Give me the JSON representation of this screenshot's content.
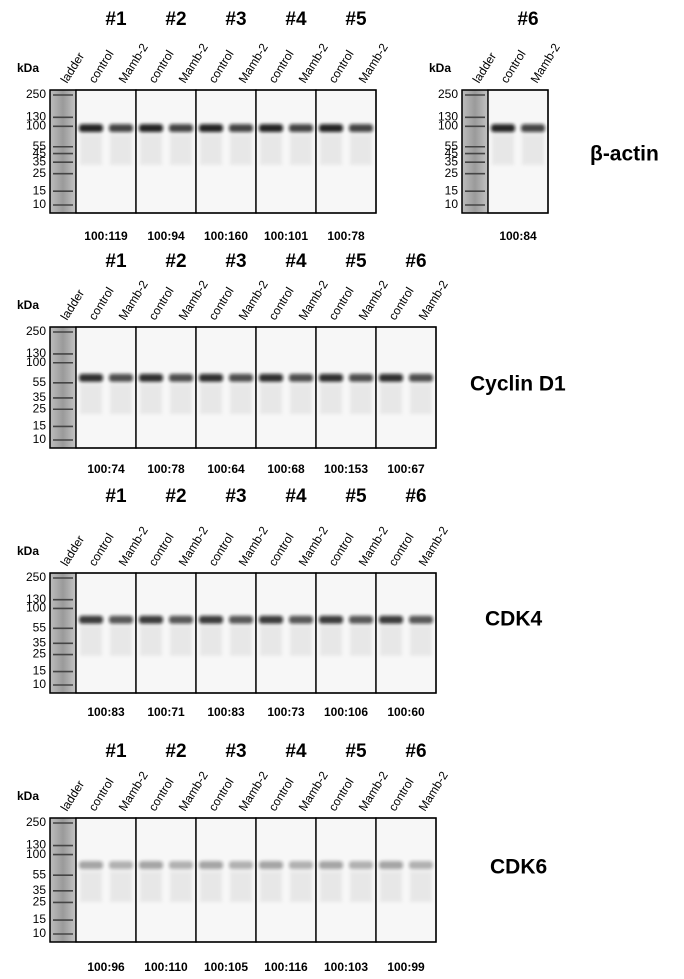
{
  "figure": {
    "rows": [
      {
        "protein": "β-actin",
        "blots": [
          {
            "kda": "kDa",
            "ladder": "ladder",
            "markers": [
              250,
              130,
              100,
              55,
              45,
              35,
              25,
              15,
              10
            ],
            "groups": [
              {
                "label": "#1",
                "lanes": [
                  "control",
                  "Mamb-2"
                ],
                "ratio": "100:119"
              },
              {
                "label": "#2",
                "lanes": [
                  "control",
                  "Mamb-2"
                ],
                "ratio": "100:94"
              },
              {
                "label": "#3",
                "lanes": [
                  "control",
                  "Mamb-2"
                ],
                "ratio": "100:160"
              },
              {
                "label": "#4",
                "lanes": [
                  "control",
                  "Mamb-2"
                ],
                "ratio": "100:101"
              },
              {
                "label": "#5",
                "lanes": [
                  "control",
                  "Mamb-2"
                ],
                "ratio": "100:78"
              }
            ]
          },
          {
            "kda": "kDa",
            "ladder": "ladder",
            "markers": [
              250,
              130,
              100,
              55,
              45,
              35,
              25,
              15,
              10
            ],
            "groups": [
              {
                "label": "#6",
                "lanes": [
                  "control",
                  "Mamb-2"
                ],
                "ratio": "100:84"
              }
            ]
          }
        ]
      },
      {
        "protein": "Cyclin D1",
        "blots": [
          {
            "kda": "kDa",
            "ladder": "ladder",
            "markers": [
              250,
              130,
              100,
              55,
              35,
              25,
              15,
              10
            ],
            "groups": [
              {
                "label": "#1",
                "lanes": [
                  "control",
                  "Mamb-2"
                ],
                "ratio": "100:74"
              },
              {
                "label": "#2",
                "lanes": [
                  "control",
                  "Mamb-2"
                ],
                "ratio": "100:78"
              },
              {
                "label": "#3",
                "lanes": [
                  "control",
                  "Mamb-2"
                ],
                "ratio": "100:64"
              },
              {
                "label": "#4",
                "lanes": [
                  "control",
                  "Mamb-2"
                ],
                "ratio": "100:68"
              },
              {
                "label": "#5",
                "lanes": [
                  "control",
                  "Mamb-2"
                ],
                "ratio": "100:153"
              },
              {
                "label": "#6",
                "lanes": [
                  "control",
                  "Mamb-2"
                ],
                "ratio": "100:67"
              }
            ]
          }
        ]
      },
      {
        "protein": "CDK4",
        "blots": [
          {
            "kda": "kDa",
            "ladder": "ladder",
            "markers": [
              250,
              130,
              100,
              55,
              35,
              25,
              15,
              10
            ],
            "groups": [
              {
                "label": "#1",
                "lanes": [
                  "control",
                  "Mamb-2"
                ],
                "ratio": "100:83"
              },
              {
                "label": "#2",
                "lanes": [
                  "control",
                  "Mamb-2"
                ],
                "ratio": "100:71"
              },
              {
                "label": "#3",
                "lanes": [
                  "control",
                  "Mamb-2"
                ],
                "ratio": "100:83"
              },
              {
                "label": "#4",
                "lanes": [
                  "control",
                  "Mamb-2"
                ],
                "ratio": "100:73"
              },
              {
                "label": "#5",
                "lanes": [
                  "control",
                  "Mamb-2"
                ],
                "ratio": "100:106"
              },
              {
                "label": "#6",
                "lanes": [
                  "control",
                  "Mamb-2"
                ],
                "ratio": "100:60"
              }
            ]
          }
        ]
      },
      {
        "protein": "CDK6",
        "blots": [
          {
            "kda": "kDa",
            "ladder": "ladder",
            "markers": [
              250,
              130,
              100,
              55,
              35,
              25,
              15,
              10
            ],
            "groups": [
              {
                "label": "#1",
                "lanes": [
                  "control",
                  "Mamb-2"
                ],
                "ratio": "100:96"
              },
              {
                "label": "#2",
                "lanes": [
                  "control",
                  "Mamb-2"
                ],
                "ratio": "100:110"
              },
              {
                "label": "#3",
                "lanes": [
                  "control",
                  "Mamb-2"
                ],
                "ratio": "100:105"
              },
              {
                "label": "#4",
                "lanes": [
                  "control",
                  "Mamb-2"
                ],
                "ratio": "100:116"
              },
              {
                "label": "#5",
                "lanes": [
                  "control",
                  "Mamb-2"
                ],
                "ratio": "100:103"
              },
              {
                "label": "#6",
                "lanes": [
                  "control",
                  "Mamb-2"
                ],
                "ratio": "100:99"
              }
            ]
          }
        ]
      }
    ]
  }
}
